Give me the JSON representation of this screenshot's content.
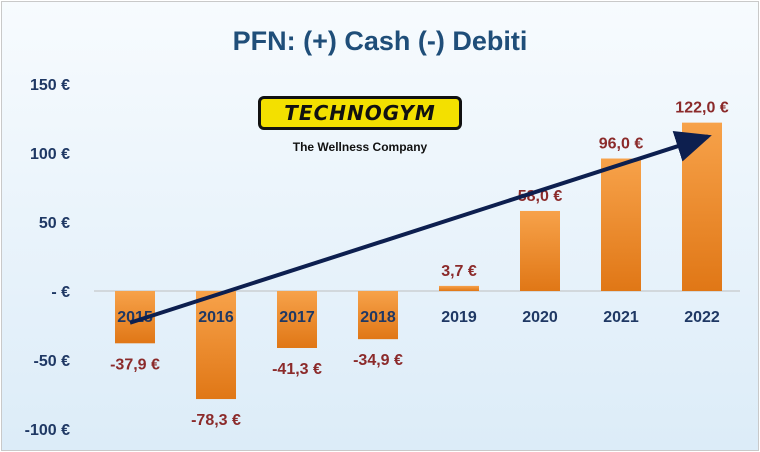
{
  "chart_data": {
    "type": "bar",
    "title": "PFN: (+) Cash (-) Debiti",
    "categories": [
      "2015",
      "2016",
      "2017",
      "2018",
      "2019",
      "2020",
      "2021",
      "2022"
    ],
    "values": [
      -37.9,
      -78.3,
      -41.3,
      -34.9,
      3.7,
      58.0,
      96.0,
      122.0
    ],
    "value_labels": [
      "-37,9 €",
      "-78,3 €",
      "-41,3 €",
      "-34,9 €",
      "3,7 €",
      "58,0 €",
      "96,0 €",
      "122,0 €"
    ],
    "ylim": [
      -100,
      150
    ],
    "yticks": [
      150,
      100,
      50,
      0,
      -50,
      -100
    ],
    "ytick_labels": [
      "150 €",
      "100 €",
      "50 €",
      "- €",
      "-50 €",
      "-100 €"
    ],
    "xlabel": "",
    "ylabel": "",
    "grid": false,
    "trend_arrow": {
      "from_category": "2015",
      "from_value": -23,
      "to_category": "2022",
      "to_value": 112
    },
    "colors": {
      "bar_top": "#f7a24a",
      "bar_bottom": "#e07716",
      "title": "#1f4e79",
      "axis_text": "#1f3864",
      "value_label": "#8b2a2a",
      "arrow": "#0d1f4f"
    }
  },
  "logo": {
    "wordmark": "TECHNOGYM",
    "tagline": "The Wellness Company"
  }
}
